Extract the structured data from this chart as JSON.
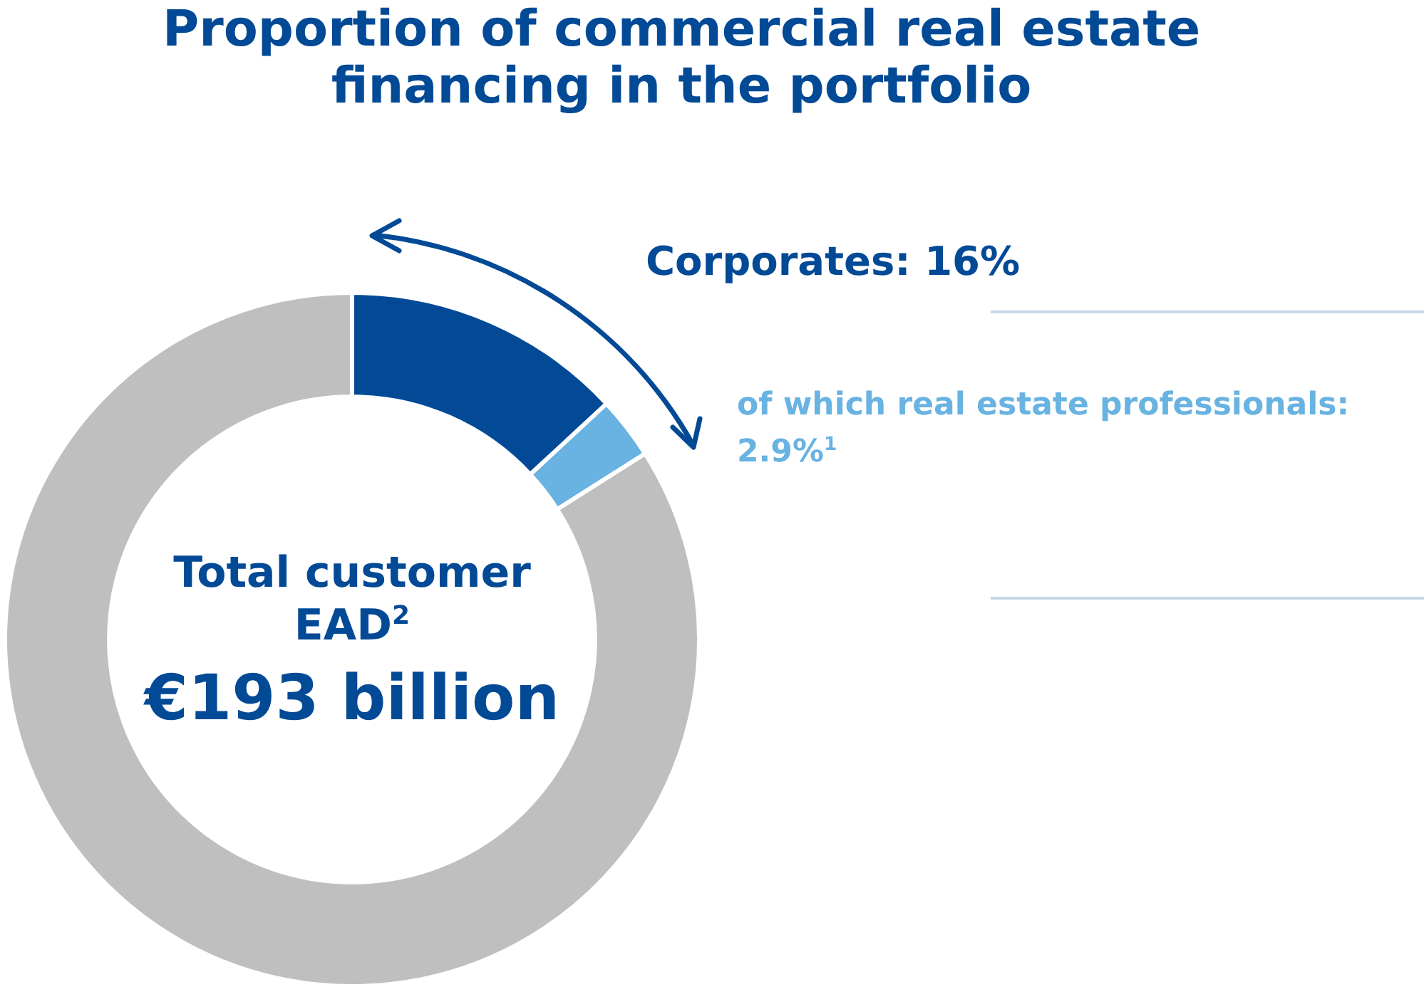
{
  "chart_data": {
    "type": "donut",
    "title": "Proportion of commercial real estate financing in the portfolio",
    "categories": [
      null,
      "of which real estate professionals: 2.9%$^{1}$",
      null
    ],
    "values": [
      13.1,
      2.9,
      84
    ],
    "colors": [
      "#034a96",
      "#68b3e1",
      "#bfbfbf"
    ],
    "annotations": [
      "Corporates: 16%",
      "Total customer EAD$^{2}$",
      "€193 billion"
    ]
  }
}
